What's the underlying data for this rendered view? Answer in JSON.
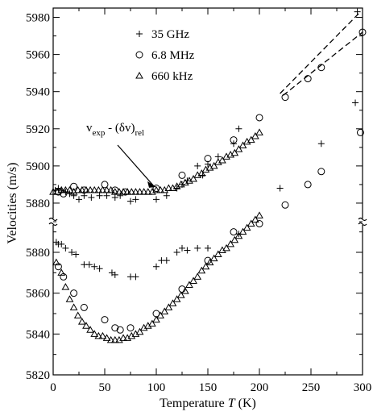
{
  "chart_data": {
    "type": "scatter",
    "xlabel_prefix": "Temperature ",
    "xlabel_var": "T",
    "xlabel_suffix": " (K)",
    "ylabel": "Velocities (m/s)",
    "x_ticks": [
      0,
      50,
      100,
      150,
      200,
      250,
      300
    ],
    "xlim": [
      0,
      300
    ],
    "y_ticks_upper": [
      5880,
      5900,
      5920,
      5940,
      5960,
      5980
    ],
    "y_ticks_lower": [
      5820,
      5840,
      5860,
      5880
    ],
    "ylim_upper": [
      5870,
      5985
    ],
    "ylim_lower": [
      5820,
      5895
    ],
    "annotation": {
      "base": "v",
      "sub1": "exp",
      "mid": " - (δv)",
      "sub2": "rel",
      "arrow_to": [
        100,
        5887
      ]
    },
    "series": [
      {
        "name": "35 GHz",
        "marker": "plus",
        "upper": [
          [
            2,
            5887
          ],
          [
            5,
            5888
          ],
          [
            8,
            5887
          ],
          [
            12,
            5886
          ],
          [
            16,
            5885
          ],
          [
            20,
            5884
          ],
          [
            25,
            5882
          ],
          [
            30,
            5884
          ],
          [
            37,
            5883
          ],
          [
            45,
            5884
          ],
          [
            52,
            5884
          ],
          [
            60,
            5883
          ],
          [
            65,
            5884
          ],
          [
            75,
            5881
          ],
          [
            80,
            5882
          ],
          [
            100,
            5882
          ],
          [
            110,
            5884
          ],
          [
            120,
            5888
          ],
          [
            125,
            5890
          ],
          [
            130,
            5892
          ],
          [
            140,
            5900
          ],
          [
            145,
            5895
          ],
          [
            150,
            5901
          ],
          [
            160,
            5905
          ],
          [
            175,
            5912
          ],
          [
            180,
            5920
          ],
          [
            220,
            5888
          ],
          [
            260,
            5912
          ],
          [
            293,
            5934
          ],
          [
            295,
            5983
          ]
        ],
        "lower": [
          [
            3,
            5885
          ],
          [
            5,
            5884
          ],
          [
            8,
            5884
          ],
          [
            12,
            5882
          ],
          [
            18,
            5880
          ],
          [
            22,
            5879
          ],
          [
            30,
            5874
          ],
          [
            35,
            5874
          ],
          [
            40,
            5873
          ],
          [
            45,
            5872
          ],
          [
            57,
            5870
          ],
          [
            60,
            5869
          ],
          [
            75,
            5868
          ],
          [
            80,
            5868
          ],
          [
            100,
            5873
          ],
          [
            105,
            5876
          ],
          [
            110,
            5876
          ],
          [
            120,
            5880
          ],
          [
            125,
            5882
          ],
          [
            130,
            5881
          ],
          [
            140,
            5882
          ],
          [
            150,
            5882
          ],
          [
            180,
            5889
          ]
        ]
      },
      {
        "name": "6.8 MHz",
        "marker": "circle",
        "upper": [
          [
            5,
            5886
          ],
          [
            10,
            5885
          ],
          [
            20,
            5889
          ],
          [
            30,
            5887
          ],
          [
            50,
            5890
          ],
          [
            60,
            5887
          ],
          [
            70,
            5886
          ],
          [
            100,
            5888
          ],
          [
            125,
            5895
          ],
          [
            150,
            5904
          ],
          [
            175,
            5914
          ],
          [
            200,
            5926
          ],
          [
            225,
            5879
          ],
          [
            247,
            5890
          ],
          [
            260,
            5897
          ],
          [
            298,
            5918
          ],
          [
            225,
            5937
          ],
          [
            247,
            5947
          ],
          [
            260,
            5953
          ],
          [
            300,
            5972
          ]
        ],
        "lower": [
          [
            5,
            5873
          ],
          [
            10,
            5868
          ],
          [
            20,
            5860
          ],
          [
            30,
            5853
          ],
          [
            50,
            5847
          ],
          [
            60,
            5843
          ],
          [
            65,
            5842
          ],
          [
            75,
            5843
          ],
          [
            100,
            5850
          ],
          [
            125,
            5862
          ],
          [
            150,
            5876
          ],
          [
            175,
            5890
          ],
          [
            200,
            5894
          ]
        ]
      },
      {
        "name": "660 kHz",
        "marker": "triangle",
        "upper": [
          [
            0,
            5886
          ],
          [
            4,
            5886
          ],
          [
            8,
            5887
          ],
          [
            12,
            5887
          ],
          [
            16,
            5887
          ],
          [
            20,
            5886
          ],
          [
            24,
            5887
          ],
          [
            28,
            5887
          ],
          [
            32,
            5887
          ],
          [
            36,
            5887
          ],
          [
            40,
            5887
          ],
          [
            44,
            5887
          ],
          [
            48,
            5887
          ],
          [
            52,
            5887
          ],
          [
            56,
            5887
          ],
          [
            60,
            5886
          ],
          [
            64,
            5886
          ],
          [
            68,
            5886
          ],
          [
            72,
            5886
          ],
          [
            76,
            5886
          ],
          [
            80,
            5886
          ],
          [
            84,
            5886
          ],
          [
            88,
            5886
          ],
          [
            92,
            5886
          ],
          [
            96,
            5886
          ],
          [
            100,
            5887
          ],
          [
            104,
            5887
          ],
          [
            108,
            5887
          ],
          [
            112,
            5888
          ],
          [
            116,
            5888
          ],
          [
            120,
            5889
          ],
          [
            124,
            5890
          ],
          [
            128,
            5891
          ],
          [
            132,
            5892
          ],
          [
            136,
            5893
          ],
          [
            140,
            5895
          ],
          [
            144,
            5896
          ],
          [
            148,
            5898
          ],
          [
            152,
            5899
          ],
          [
            156,
            5900
          ],
          [
            160,
            5902
          ],
          [
            164,
            5903
          ],
          [
            168,
            5905
          ],
          [
            172,
            5906
          ],
          [
            176,
            5907
          ],
          [
            180,
            5909
          ],
          [
            184,
            5911
          ],
          [
            188,
            5913
          ],
          [
            192,
            5914
          ],
          [
            196,
            5916
          ],
          [
            200,
            5918
          ]
        ],
        "lower": [
          [
            3,
            5875
          ],
          [
            8,
            5870
          ],
          [
            12,
            5863
          ],
          [
            16,
            5857
          ],
          [
            20,
            5853
          ],
          [
            24,
            5849
          ],
          [
            28,
            5846
          ],
          [
            32,
            5844
          ],
          [
            36,
            5842
          ],
          [
            40,
            5840
          ],
          [
            44,
            5839
          ],
          [
            48,
            5839
          ],
          [
            52,
            5838
          ],
          [
            56,
            5837
          ],
          [
            60,
            5837
          ],
          [
            64,
            5837
          ],
          [
            68,
            5838
          ],
          [
            72,
            5838
          ],
          [
            76,
            5839
          ],
          [
            80,
            5840
          ],
          [
            84,
            5841
          ],
          [
            88,
            5843
          ],
          [
            92,
            5844
          ],
          [
            96,
            5845
          ],
          [
            100,
            5847
          ],
          [
            104,
            5849
          ],
          [
            108,
            5851
          ],
          [
            112,
            5853
          ],
          [
            116,
            5855
          ],
          [
            120,
            5857
          ],
          [
            124,
            5859
          ],
          [
            128,
            5861
          ],
          [
            132,
            5864
          ],
          [
            136,
            5866
          ],
          [
            140,
            5868
          ],
          [
            144,
            5871
          ],
          [
            148,
            5873
          ],
          [
            152,
            5875
          ],
          [
            156,
            5877
          ],
          [
            160,
            5879
          ],
          [
            164,
            5881
          ],
          [
            168,
            5882
          ],
          [
            172,
            5884
          ],
          [
            176,
            5886
          ],
          [
            180,
            5888
          ],
          [
            184,
            5890
          ],
          [
            188,
            5892
          ],
          [
            192,
            5894
          ],
          [
            196,
            5896
          ],
          [
            200,
            5898
          ]
        ]
      }
    ],
    "dashed_fits": [
      {
        "name": "fit-35ghz",
        "from": [
          220,
          5939
        ],
        "to": [
          298,
          5983
        ]
      },
      {
        "name": "fit-6-8mhz",
        "from": [
          223,
          5938
        ],
        "to": [
          300,
          5972
        ]
      }
    ]
  }
}
